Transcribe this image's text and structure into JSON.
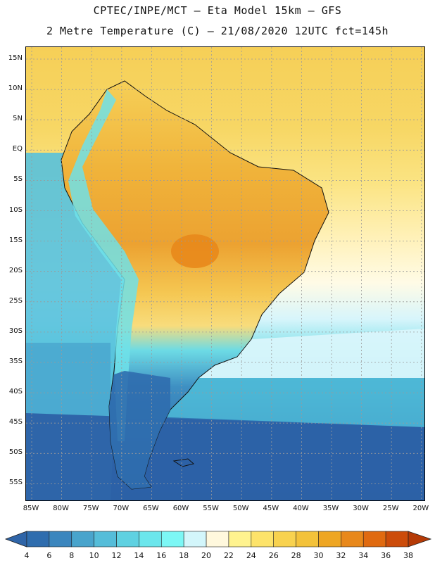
{
  "header": {
    "line1": "CPTEC/INPE/MCT –  Eta Model 15km – GFS",
    "line2": "2 Metre Temperature (C) – 21/08/2020 12UTC fct=145h"
  },
  "map": {
    "lat_labels": [
      "15N",
      "10N",
      "5N",
      "EQ",
      "5S",
      "10S",
      "15S",
      "20S",
      "25S",
      "30S",
      "35S",
      "40S",
      "45S",
      "50S",
      "55S"
    ],
    "lon_labels": [
      "85W",
      "80W",
      "75W",
      "70W",
      "65W",
      "60W",
      "55W",
      "50W",
      "45W",
      "40W",
      "35W",
      "30W",
      "25W",
      "20W"
    ],
    "variable": "2 Metre Temperature",
    "units": "C"
  },
  "legend": {
    "labels": [
      "4",
      "6",
      "8",
      "10",
      "12",
      "14",
      "16",
      "18",
      "20",
      "22",
      "24",
      "26",
      "28",
      "30",
      "32",
      "34",
      "36",
      "38"
    ],
    "colors": [
      "#2f65a8",
      "#2f6dae",
      "#3b86be",
      "#49a4cc",
      "#55bdd9",
      "#5fd1e1",
      "#6be6ec",
      "#7cf7f5",
      "#d3f6fb",
      "#fff8dd",
      "#fff38f",
      "#fde36a",
      "#f8d24f",
      "#f3c23a",
      "#eea623",
      "#e8881b",
      "#e06a10",
      "#cc4c0a",
      "#b53a06"
    ]
  }
}
